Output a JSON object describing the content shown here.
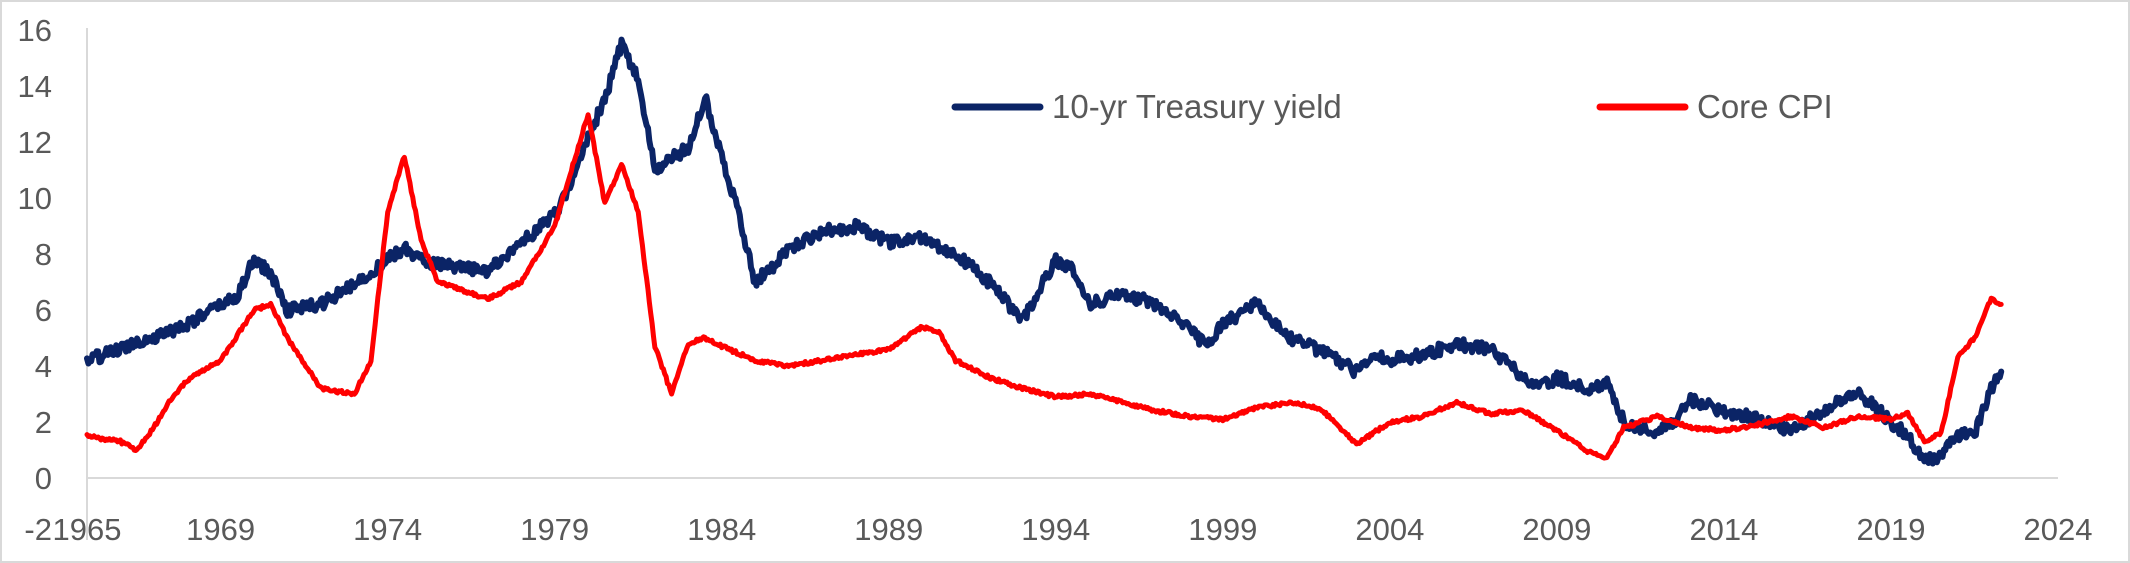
{
  "chart_data": {
    "type": "line",
    "title": "",
    "xlabel": "",
    "ylabel": "",
    "xlim": [
      1965,
      2024
    ],
    "ylim": [
      -2,
      16
    ],
    "x_ticks": [
      1965,
      1969,
      1974,
      1979,
      1984,
      1989,
      1994,
      1999,
      2004,
      2009,
      2014,
      2019,
      2024
    ],
    "y_ticks": [
      0,
      2,
      4,
      6,
      8,
      10,
      12,
      14,
      16
    ],
    "bottom_label": "-2",
    "grid": false,
    "legend": "top-right",
    "series": [
      {
        "name": "10-yr Treasury yield",
        "color": "#0b2466",
        "x": [
          1965,
          1966,
          1966.5,
          1967,
          1968,
          1969.5,
          1970,
          1970.5,
          1971,
          1972,
          1973,
          1974,
          1974.5,
          1975,
          1976,
          1977,
          1978,
          1979,
          1979.5,
          1980,
          1980.5,
          1981,
          1981.5,
          1982,
          1983,
          1983.5,
          1984,
          1984.5,
          1985,
          1985.5,
          1986,
          1987,
          1988,
          1989,
          1990,
          1991,
          1992,
          1993,
          1994,
          1994.5,
          1995,
          1996,
          1997,
          1998,
          1998.5,
          1999,
          2000,
          2001,
          2002,
          2003,
          2003.5,
          2004,
          2005,
          2006,
          2007,
          2008,
          2008.5,
          2009,
          2010,
          2010.5,
          2011,
          2012,
          2012.5,
          2013,
          2014,
          2015,
          2016,
          2017,
          2018,
          2019,
          2019.5,
          2020,
          2020.5,
          2021,
          2021.5,
          2022,
          2022.3
        ],
        "values": [
          4.2,
          4.6,
          4.9,
          5.0,
          5.5,
          6.5,
          7.8,
          7.3,
          6.0,
          6.2,
          6.9,
          7.8,
          8.2,
          7.8,
          7.5,
          7.4,
          8.4,
          9.4,
          10.5,
          12.2,
          13.5,
          15.5,
          14.2,
          11.0,
          11.8,
          13.6,
          11.5,
          9.5,
          7.0,
          7.5,
          8.2,
          8.8,
          9.0,
          8.4,
          8.6,
          8.0,
          7.0,
          5.6,
          7.8,
          7.5,
          6.2,
          6.6,
          6.2,
          5.3,
          4.7,
          5.5,
          6.2,
          5.0,
          4.5,
          3.8,
          4.4,
          4.2,
          4.4,
          4.8,
          4.6,
          3.6,
          3.2,
          3.6,
          3.1,
          3.5,
          2.0,
          1.6,
          2.0,
          2.8,
          2.4,
          2.1,
          1.7,
          2.4,
          3.1,
          2.0,
          1.5,
          0.6,
          0.8,
          1.5,
          1.6,
          3.2,
          3.8
        ]
      },
      {
        "name": "Core CPI",
        "color": "#ff0000",
        "x": [
          1965,
          1966,
          1966.5,
          1967,
          1967.5,
          1968,
          1969,
          1970,
          1970.5,
          1971,
          1972,
          1973,
          1973.5,
          1974,
          1974.5,
          1975,
          1975.5,
          1976,
          1977,
          1978,
          1979,
          1979.5,
          1980,
          1980.5,
          1981,
          1981.5,
          1982,
          1982.5,
          1983,
          1983.5,
          1984,
          1985,
          1986,
          1987,
          1988,
          1989,
          1990,
          1990.5,
          1991,
          1992,
          1993,
          1994,
          1995,
          1996,
          1997,
          1998,
          1999,
          2000,
          2001,
          2001.5,
          2002,
          2003,
          2004,
          2005,
          2006,
          2007,
          2008,
          2009,
          2010,
          2010.5,
          2011,
          2012,
          2013,
          2014,
          2015,
          2016,
          2017,
          2018,
          2019,
          2019.5,
          2020,
          2020.5,
          2021,
          2021.5,
          2022,
          2022.3
        ],
        "values": [
          1.5,
          1.3,
          1.0,
          1.8,
          2.8,
          3.5,
          4.2,
          6.0,
          6.2,
          5.0,
          3.2,
          3.0,
          4.2,
          9.5,
          11.5,
          8.5,
          7.0,
          6.8,
          6.4,
          7.0,
          9.0,
          11.0,
          13.0,
          9.8,
          11.2,
          9.5,
          4.7,
          3.0,
          4.8,
          5.0,
          4.7,
          4.2,
          4.0,
          4.2,
          4.4,
          4.6,
          5.4,
          5.2,
          4.2,
          3.6,
          3.2,
          2.9,
          3.0,
          2.7,
          2.4,
          2.2,
          2.1,
          2.5,
          2.7,
          2.6,
          2.4,
          1.2,
          2.0,
          2.2,
          2.7,
          2.3,
          2.4,
          1.7,
          0.9,
          0.7,
          1.8,
          2.2,
          1.8,
          1.7,
          1.9,
          2.2,
          1.8,
          2.2,
          2.1,
          2.3,
          1.3,
          1.6,
          4.3,
          5.0,
          6.4,
          6.2
        ]
      }
    ]
  }
}
